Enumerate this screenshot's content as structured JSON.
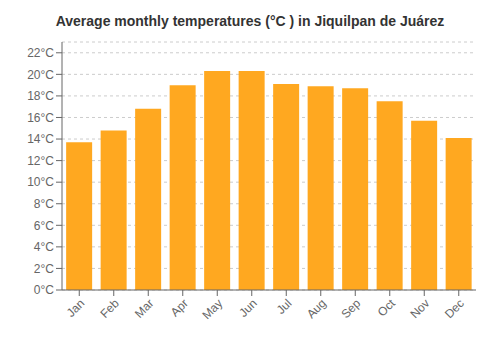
{
  "chart_data": {
    "type": "bar",
    "title": "Average monthly temperatures (°C ) in Jiquilpan de Juárez",
    "categories": [
      "Jan",
      "Feb",
      "Mar",
      "Apr",
      "May",
      "Jun",
      "Jul",
      "Aug",
      "Sep",
      "Oct",
      "Nov",
      "Dec"
    ],
    "values": [
      13.7,
      14.8,
      16.8,
      19.0,
      20.3,
      20.3,
      19.1,
      18.9,
      18.7,
      17.5,
      15.7,
      14.1
    ],
    "color": "#FFA820",
    "ylim": [
      0,
      23
    ],
    "yticks": [
      {
        "value": 0,
        "label": "0°C"
      },
      {
        "value": 2,
        "label": "2°C"
      },
      {
        "value": 4,
        "label": "4°C"
      },
      {
        "value": 6,
        "label": "6°C"
      },
      {
        "value": 8,
        "label": "8°C"
      },
      {
        "value": 10,
        "label": "10°C"
      },
      {
        "value": 12,
        "label": "12°C"
      },
      {
        "value": 14,
        "label": "14°C"
      },
      {
        "value": 16,
        "label": "16°C"
      },
      {
        "value": 18,
        "label": "18°C"
      },
      {
        "value": 20,
        "label": "20°C"
      },
      {
        "value": 22,
        "label": "22°C"
      }
    ],
    "grid": true
  }
}
